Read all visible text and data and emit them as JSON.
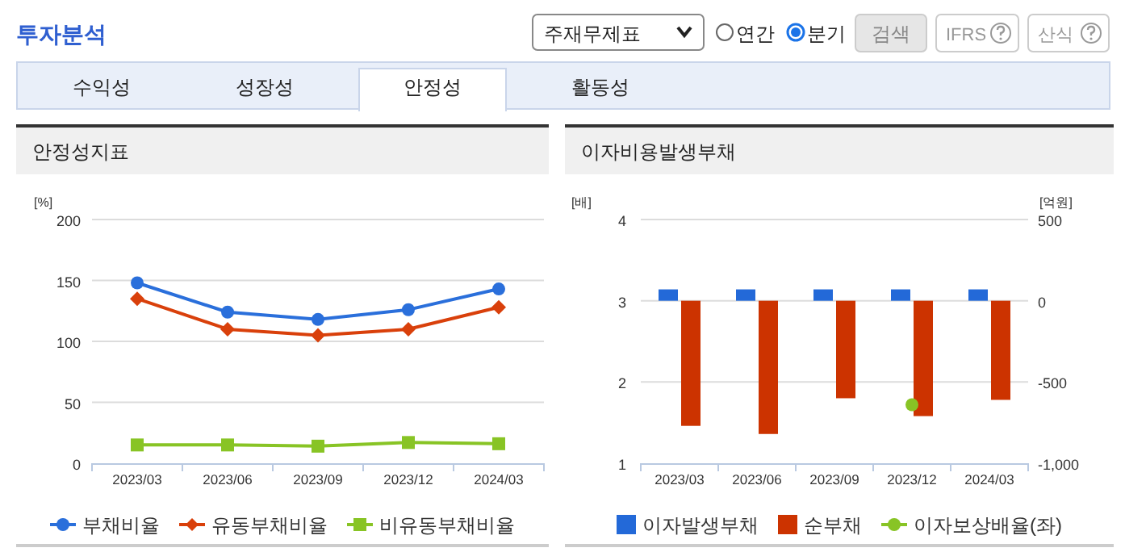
{
  "chart_data": [
    {
      "type": "other",
      "title": "투자분석",
      "annotations": [
        "주재무제표",
        "연간",
        "분기",
        "검색",
        "IFRS",
        "산식",
        "수익성",
        "성장성",
        "안정성",
        "활동성"
      ]
    },
    {
      "type": "line",
      "title": "안정성지표",
      "ylabel": "[%]",
      "categories": [
        "2023/03",
        "2023/06",
        "2023/09",
        "2023/12",
        "2024/03"
      ],
      "ylim": [
        0,
        200
      ],
      "yticks": [
        0,
        50,
        100,
        150,
        200
      ],
      "grid": "y",
      "legend": "bottom",
      "series": [
        {
          "name": "부채비율",
          "color": "#2a6fdb",
          "marker": "circle",
          "values": [
            148,
            124,
            118,
            126,
            143
          ]
        },
        {
          "name": "유동부채비율",
          "color": "#d9400b",
          "marker": "diamond",
          "values": [
            135,
            110,
            105,
            110,
            128
          ]
        },
        {
          "name": "비유동부채비율",
          "color": "#88c425",
          "marker": "square",
          "values": [
            15,
            15,
            14,
            17,
            16
          ]
        }
      ]
    },
    {
      "type": "bar",
      "title": "이자비용발생부채",
      "ylabel": "[배]",
      "y2label": "[억원]",
      "categories": [
        "2023/03",
        "2023/06",
        "2023/09",
        "2023/12",
        "2024/03"
      ],
      "ylim": [
        1,
        4
      ],
      "yticks": [
        1,
        2,
        3,
        4
      ],
      "y2lim": [
        -1000,
        500
      ],
      "y2ticks": [
        {
          "value": -1000,
          "label": "-1,000"
        },
        -500,
        0,
        500
      ],
      "grid": "y",
      "legend": "bottom",
      "series": [
        {
          "name": "이자발생부채",
          "color": "#2369d8",
          "axis": "y2",
          "values": [
            70,
            70,
            70,
            70,
            70
          ]
        },
        {
          "name": "순부채",
          "color": "#cc3300",
          "axis": "y2",
          "values": [
            -770,
            -820,
            -600,
            -710,
            -610
          ]
        },
        {
          "name": "이자보상배율(좌)",
          "type": "line",
          "color": "#88c425",
          "marker": "circle",
          "values": [
            null,
            null,
            null,
            1.72,
            null
          ]
        }
      ]
    }
  ]
}
